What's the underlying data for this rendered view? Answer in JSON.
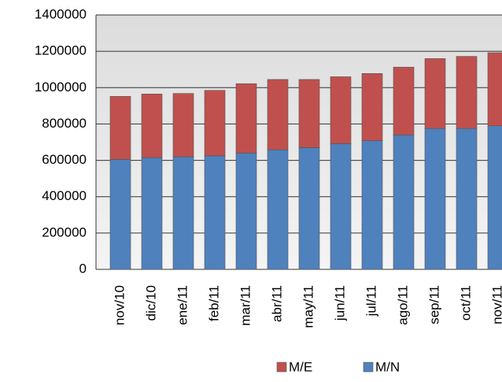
{
  "chart_data": {
    "type": "stacked_bar",
    "categories": [
      "nov/10",
      "dic/10",
      "ene/11",
      "feb/11",
      "mar/11",
      "abr/11",
      "may/11",
      "jun/11",
      "jul/11",
      "ago/11",
      "sep/11",
      "oct/11",
      "nov/11"
    ],
    "series": [
      {
        "name": "M/N",
        "color": "#4f81bd",
        "values": [
          605000,
          615000,
          620000,
          625000,
          640000,
          658000,
          670000,
          692000,
          708000,
          740000,
          775000,
          775000,
          790000
        ]
      },
      {
        "name": "M/E",
        "color": "#c0504d",
        "values": [
          347000,
          350000,
          348000,
          360000,
          382000,
          387000,
          375000,
          368000,
          370000,
          373000,
          385000,
          397000,
          402000
        ]
      }
    ],
    "ylim": [
      0,
      1400000
    ],
    "yticks": [
      0,
      200000,
      400000,
      600000,
      800000,
      1000000,
      1200000,
      1400000
    ],
    "grid": true
  }
}
